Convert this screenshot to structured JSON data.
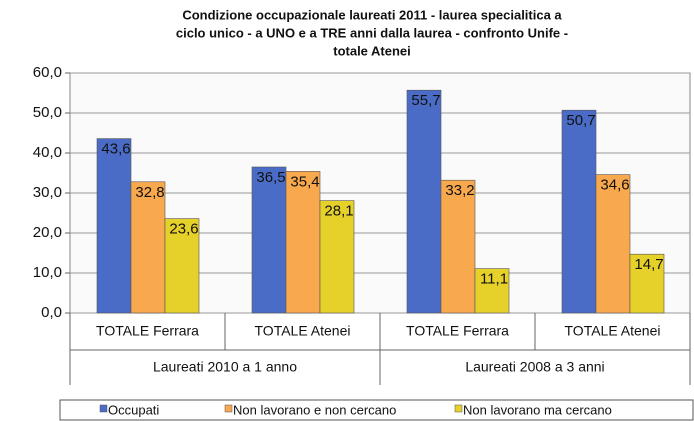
{
  "chart_data": {
    "type": "bar",
    "title": [
      "Condizione occupazionale laureati 2011 - laurea specialitica a",
      "ciclo unico - a UNO e a TRE anni dalla laurea - confronto  Unife -",
      "totale  Atenei"
    ],
    "categories": [
      "TOTALE Ferrara",
      "TOTALE Atenei",
      "TOTALE Ferrara",
      "TOTALE Atenei"
    ],
    "groups": [
      "Laureati 2010 a 1 anno",
      "Laureati 2008 a 3 anni"
    ],
    "series": [
      {
        "name": "Occupati",
        "color": "#4a6cc6",
        "values": [
          43.6,
          36.5,
          55.7,
          50.7
        ],
        "value_labels": [
          "43,6",
          "36,5",
          "55,7",
          "50,7"
        ]
      },
      {
        "name": "Non lavorano e non cercano",
        "color": "#f8a94e",
        "values": [
          32.8,
          35.4,
          33.2,
          34.6
        ],
        "value_labels": [
          "32,8",
          "35,4",
          "33,2",
          "34,6"
        ]
      },
      {
        "name": "Non lavorano ma cercano",
        "color": "#e6d02a",
        "values": [
          23.6,
          28.1,
          11.1,
          14.7
        ],
        "value_labels": [
          "23,6",
          "28,1",
          "11,1",
          "14,7"
        ]
      }
    ],
    "ylim": [
      0,
      60
    ],
    "yticks": [
      {
        "value": 0,
        "label": "0,0"
      },
      {
        "value": 10,
        "label": "10,0"
      },
      {
        "value": 20,
        "label": "20,0"
      },
      {
        "value": 30,
        "label": "30,0"
      },
      {
        "value": 40,
        "label": "40,0"
      },
      {
        "value": 50,
        "label": "50,0"
      },
      {
        "value": 60,
        "label": "60,0"
      }
    ],
    "grid": true,
    "legend": "bottom"
  }
}
